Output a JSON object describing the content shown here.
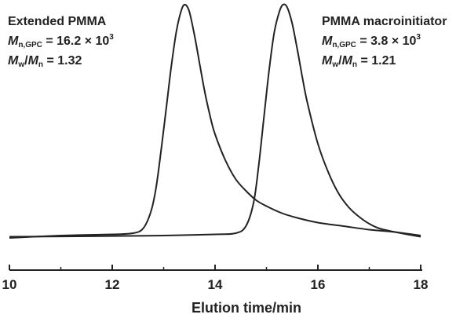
{
  "chart_data": {
    "type": "line",
    "xlabel": "Elution time/min",
    "ylabel": "",
    "xlim": [
      10,
      18
    ],
    "ylim": [
      0,
      1.0
    ],
    "xticks": [
      "10",
      "12",
      "14",
      "16",
      "18"
    ],
    "grid": false,
    "series": [
      {
        "name": "Extended PMMA",
        "color": "#222222",
        "x": [
          10.0,
          11.0,
          12.0,
          12.4,
          12.6,
          12.75,
          12.85,
          12.95,
          13.05,
          13.15,
          13.25,
          13.35,
          13.42,
          13.5,
          13.6,
          13.7,
          13.8,
          13.9,
          14.0,
          14.2,
          14.4,
          14.6,
          14.8,
          15.0,
          15.3,
          15.6,
          16.0,
          16.5,
          17.0,
          17.5,
          18.0
        ],
        "y": [
          0.01,
          0.02,
          0.025,
          0.03,
          0.05,
          0.12,
          0.22,
          0.38,
          0.56,
          0.74,
          0.89,
          0.98,
          1.0,
          0.97,
          0.87,
          0.75,
          0.63,
          0.53,
          0.45,
          0.34,
          0.26,
          0.21,
          0.17,
          0.145,
          0.115,
          0.095,
          0.075,
          0.06,
          0.045,
          0.035,
          0.02
        ]
      },
      {
        "name": "PMMA macroinitiator",
        "color": "#222222",
        "x": [
          10.0,
          12.0,
          13.0,
          14.0,
          14.4,
          14.6,
          14.75,
          14.85,
          14.95,
          15.05,
          15.15,
          15.25,
          15.32,
          15.4,
          15.5,
          15.6,
          15.7,
          15.8,
          16.0,
          16.2,
          16.4,
          16.6,
          16.8,
          17.0,
          17.2,
          17.5,
          18.0
        ],
        "y": [
          0.015,
          0.018,
          0.02,
          0.025,
          0.03,
          0.06,
          0.16,
          0.32,
          0.52,
          0.72,
          0.88,
          0.97,
          1.0,
          0.99,
          0.92,
          0.81,
          0.69,
          0.58,
          0.41,
          0.29,
          0.2,
          0.14,
          0.1,
          0.07,
          0.05,
          0.035,
          0.015
        ]
      }
    ],
    "annotations": {
      "left": {
        "name": "Extended PMMA",
        "mn_symbol": "M",
        "mn_sub": "n,GPC",
        "mn_value": " = 16.2 × 10",
        "mn_exp": "3",
        "pdi_symbol1": "M",
        "pdi_sub1": "w",
        "pdi_slash": "/",
        "pdi_symbol2": "M",
        "pdi_sub2": "n",
        "pdi_value": " = 1.32"
      },
      "right": {
        "name": "PMMA macroinitiator",
        "mn_symbol": "M",
        "mn_sub": "n,GPC",
        "mn_value": " = 3.8 × 10",
        "mn_exp": "3",
        "pdi_symbol1": "M",
        "pdi_sub1": "w",
        "pdi_slash": "/",
        "pdi_symbol2": "M",
        "pdi_sub2": "n",
        "pdi_value": " = 1.21"
      }
    }
  }
}
